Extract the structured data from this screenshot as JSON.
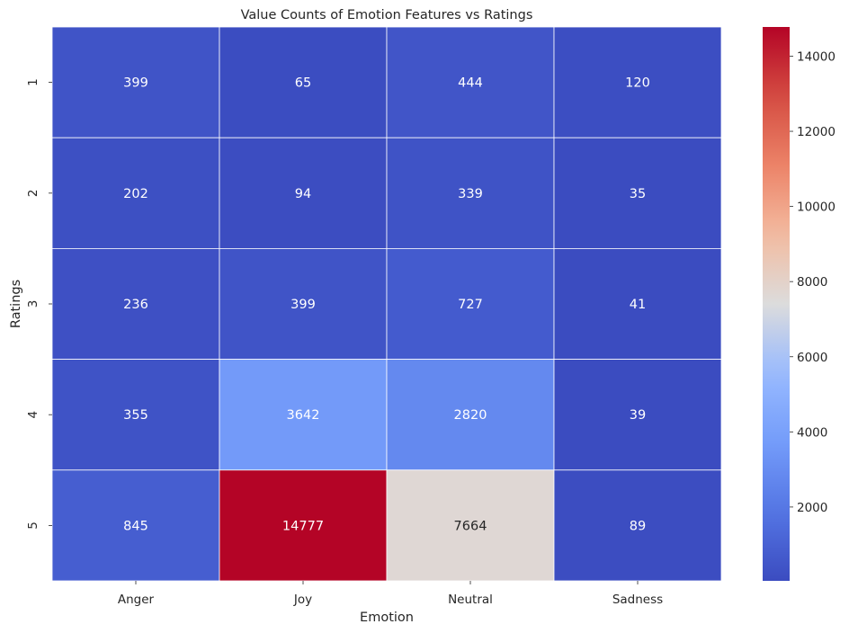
{
  "chart_data": {
    "type": "heatmap",
    "title": "Value Counts of Emotion Features vs Ratings",
    "xlabel": "Emotion",
    "ylabel": "Ratings",
    "x_categories": [
      "Anger",
      "Joy",
      "Neutral",
      "Sadness"
    ],
    "y_categories": [
      "1",
      "2",
      "3",
      "4",
      "5"
    ],
    "values": [
      [
        399,
        65,
        444,
        120
      ],
      [
        202,
        94,
        339,
        35
      ],
      [
        236,
        399,
        727,
        41
      ],
      [
        355,
        3642,
        2820,
        39
      ],
      [
        845,
        14777,
        7664,
        89
      ]
    ],
    "colormap": "coolwarm",
    "colorbar": {
      "min": 35,
      "max": 14777,
      "ticks": [
        2000,
        4000,
        6000,
        8000,
        10000,
        12000,
        14000
      ]
    },
    "grid_line_color": "#ffffff"
  }
}
